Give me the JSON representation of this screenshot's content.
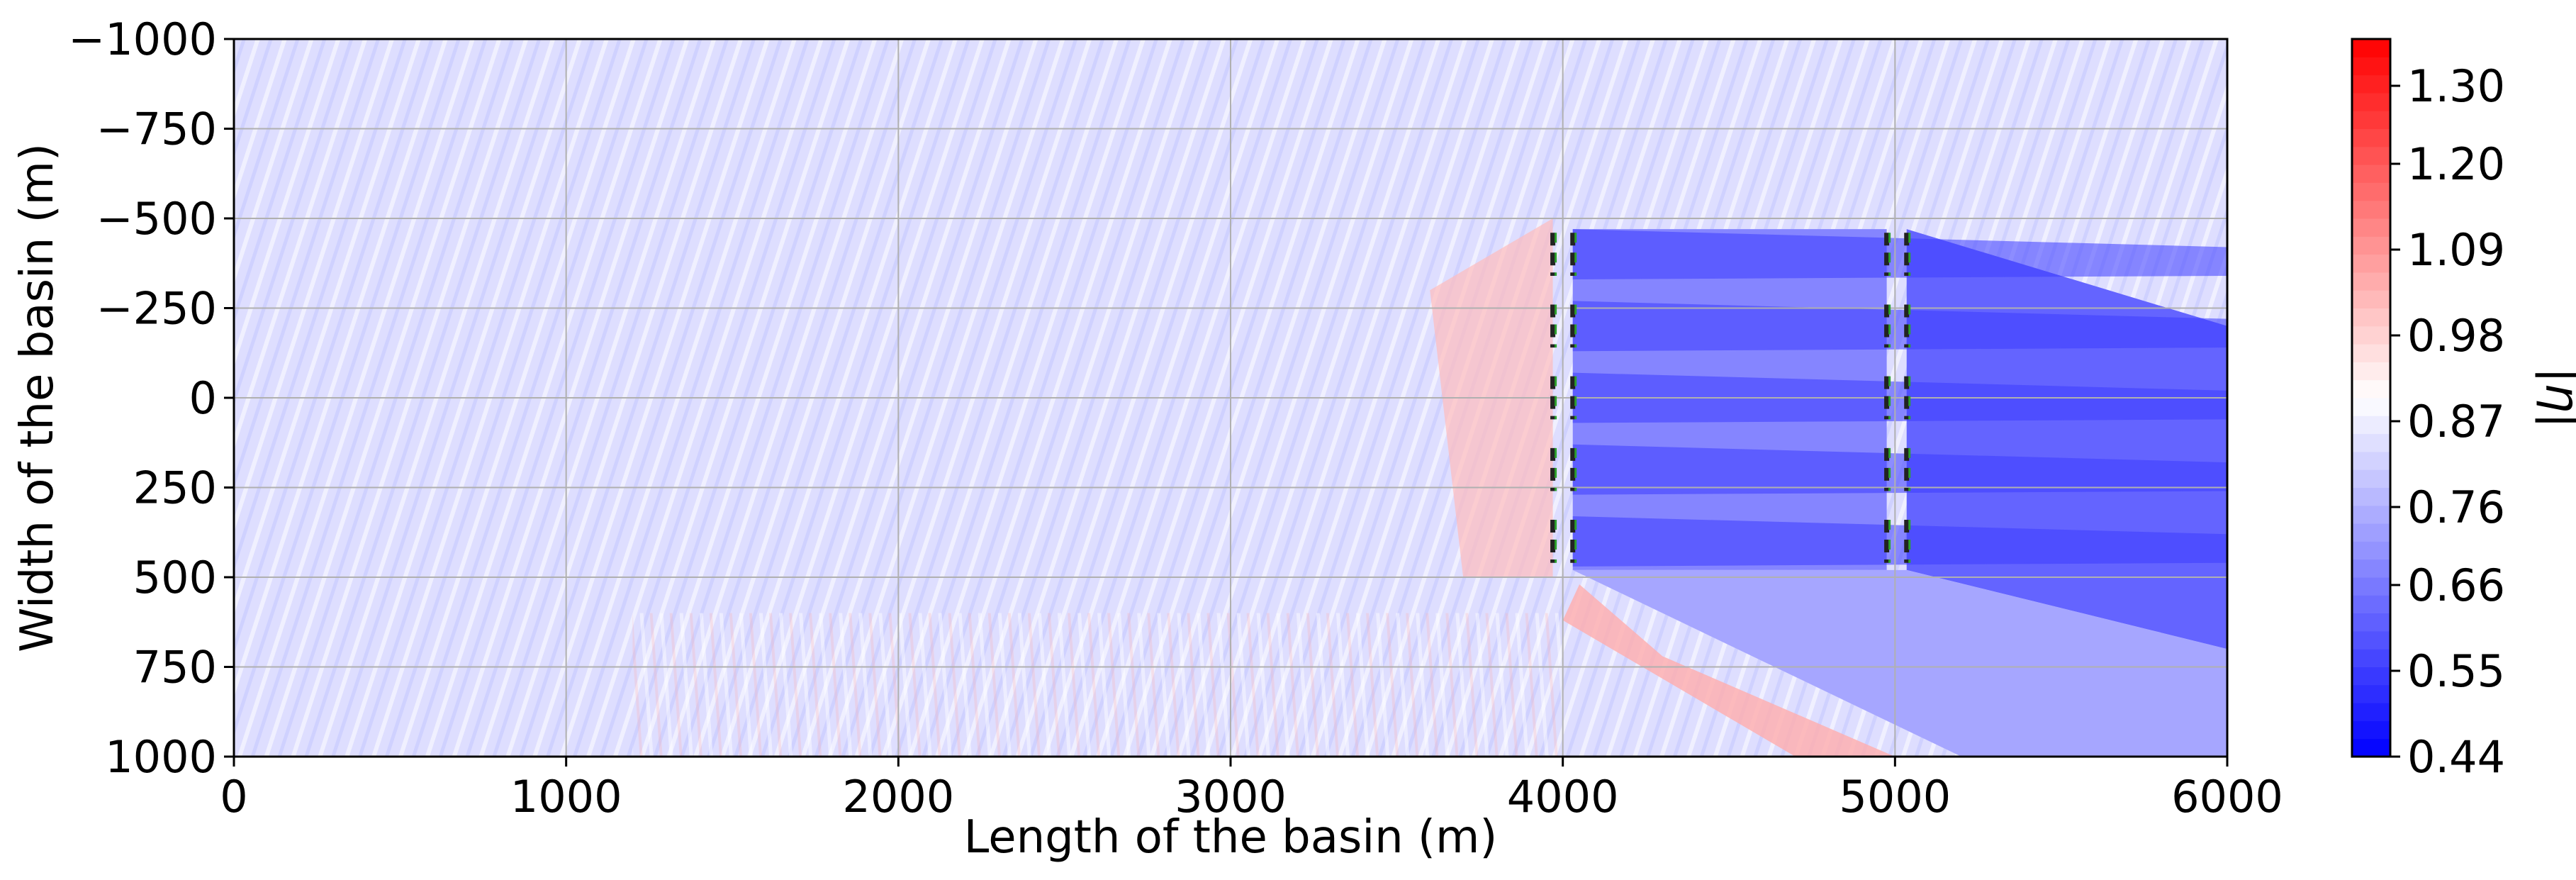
{
  "chart_data": {
    "type": "heatmap",
    "title": "",
    "xlabel": "Length of the basin (m)",
    "ylabel": "Width of the basin (m)",
    "xlim": [
      0,
      6000
    ],
    "ylim": [
      -1000,
      1000
    ],
    "y_inverted": true,
    "x_ticks": [
      0,
      1000,
      2000,
      3000,
      4000,
      5000,
      6000
    ],
    "x_tick_labels": [
      "0",
      "1000",
      "2000",
      "3000",
      "4000",
      "5000",
      "6000"
    ],
    "y_ticks": [
      -1000,
      -750,
      -500,
      -250,
      0,
      250,
      500,
      750,
      1000
    ],
    "y_tick_labels": [
      "−1000",
      "−750",
      "−500",
      "−250",
      "0",
      "250",
      "500",
      "750",
      "1000"
    ],
    "grid": true,
    "colorbar": {
      "label": "|η|",
      "range": [
        0.44,
        1.36
      ],
      "ticks": [
        0.44,
        0.55,
        0.66,
        0.76,
        0.87,
        0.98,
        1.09,
        1.2,
        1.3
      ],
      "tick_labels": [
        "0.44",
        "0.55",
        "0.66",
        "0.76",
        "0.87",
        "0.98",
        "1.09",
        "1.20",
        "1.30"
      ],
      "colormap": "bwr",
      "low_color": "#0000ff",
      "mid_color": "#ffffff",
      "high_color": "#ff0000"
    },
    "devices": {
      "rows_y": [
        -400,
        -200,
        0,
        200,
        400
      ],
      "columns_x": [
        3970,
        4030,
        4975,
        5035
      ],
      "segment_half_length": 60,
      "outline_color": "#222222",
      "inner_color": "#2ca02c"
    },
    "background_level": 0.84,
    "shadow_level": 0.62
  }
}
